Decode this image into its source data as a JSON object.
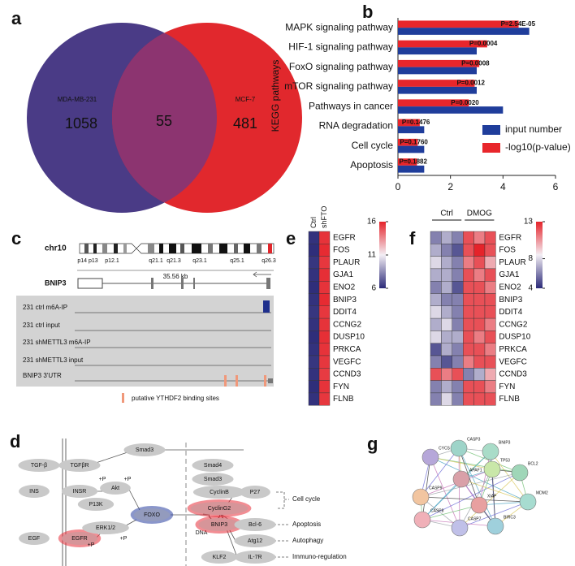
{
  "panel_labels": [
    "a",
    "b",
    "c",
    "d",
    "e",
    "f",
    "g"
  ],
  "chart_data": [
    {
      "type": "venn",
      "sets": [
        {
          "name": "MDA-MB-231",
          "count": 1058,
          "color": "#4a3b86"
        },
        {
          "name": "MCF-7",
          "count": 481,
          "color": "#e1282d"
        }
      ],
      "overlap": 55,
      "overlap_color": "#8c3470"
    },
    {
      "type": "hbar",
      "y_label": "KEGG pathways",
      "categories": [
        "MAPK signaling pathway",
        "HIF-1 signaling pathway",
        "FoxO signaling pathway",
        "mTOR signaling pathway",
        "Pathways in cancer",
        "RNA degradation",
        "Cell cycle",
        "Apoptosis"
      ],
      "series": [
        {
          "name": "input number",
          "color": "#1f3d9b",
          "values": [
            5,
            3,
            3,
            3,
            4,
            1,
            1,
            1
          ]
        },
        {
          "name": "-log10(p-value)",
          "color": "#e8262b",
          "values": [
            4.595,
            3.398,
            3.097,
            2.921,
            2.699,
            0.831,
            0.754,
            0.725
          ]
        }
      ],
      "annotations": [
        "P=2.54E-05",
        "P=0.0004",
        "P=0.0008",
        "P=0.0012",
        "P=0.0020",
        "P=0.1476",
        "P=0.1760",
        "P=0.1882"
      ],
      "xlim": [
        0,
        6
      ],
      "xticks": [
        0,
        2,
        4,
        6
      ],
      "legend": "lower right"
    },
    {
      "type": "heatmap",
      "x_categories": [
        "Ctrl",
        "shFTO"
      ],
      "y_categories": [
        "EGFR",
        "FOS",
        "PLAUR",
        "GJA1",
        "ENO2",
        "BNIP3",
        "DDIT4",
        "CCNG2",
        "DUSP10",
        "PRKCA",
        "VEGFC",
        "CCND3",
        "FYN",
        "FLNB"
      ],
      "values": [
        [
          6.2,
          15.6
        ],
        [
          6.1,
          15.8
        ],
        [
          6.3,
          15.5
        ],
        [
          6.2,
          15.7
        ],
        [
          6.1,
          15.6
        ],
        [
          6.2,
          15.8
        ],
        [
          6.3,
          15.5
        ],
        [
          6.2,
          15.6
        ],
        [
          6.1,
          15.7
        ],
        [
          6.2,
          15.6
        ],
        [
          6.3,
          15.5
        ],
        [
          6.2,
          15.4
        ],
        [
          6.1,
          15.6
        ],
        [
          6.2,
          15.5
        ]
      ],
      "clim": [
        6,
        16
      ],
      "cticks": [
        6,
        11,
        16
      ],
      "colors": [
        "#2b2a78",
        "#f3eef4",
        "#e5232a"
      ]
    },
    {
      "type": "heatmap",
      "groups": [
        {
          "name": "Ctrl",
          "size": 3
        },
        {
          "name": "DMOG",
          "size": 3
        }
      ],
      "y_categories": [
        "EGFR",
        "FOS",
        "PLAUR",
        "GJA1",
        "ENO2",
        "BNIP3",
        "DDIT4",
        "CCNG2",
        "DUSP10",
        "PRKCA",
        "VEGFC",
        "CCND3",
        "FYN",
        "FLNB"
      ],
      "values": [
        [
          6,
          7,
          6,
          12,
          11,
          12
        ],
        [
          7,
          6,
          5,
          12,
          13,
          12
        ],
        [
          8,
          7,
          6,
          11,
          12,
          10
        ],
        [
          7,
          7,
          6,
          12,
          11,
          12
        ],
        [
          6,
          7,
          5,
          12,
          12,
          11
        ],
        [
          7,
          6,
          6,
          12,
          12,
          12
        ],
        [
          8,
          7,
          6,
          12,
          12,
          12
        ],
        [
          7,
          8,
          6,
          12,
          12,
          11
        ],
        [
          8,
          7,
          7,
          12,
          11,
          12
        ],
        [
          5,
          7,
          6,
          12,
          12,
          11
        ],
        [
          6,
          5,
          6,
          11,
          12,
          12
        ],
        [
          12,
          11,
          12,
          6,
          7,
          10
        ],
        [
          6,
          7,
          6,
          12,
          12,
          11
        ],
        [
          6,
          8,
          6,
          12,
          12,
          12
        ]
      ],
      "clim": [
        4,
        13
      ],
      "cticks": [
        4,
        8,
        13
      ],
      "colors": [
        "#2b2a78",
        "#f3eef4",
        "#e5232a"
      ]
    }
  ],
  "genome_track": {
    "chromosome": "chr10",
    "bands": [
      "p14 p13",
      "p12.1",
      "q21.1",
      "q21.3",
      "q23.1",
      "q25.1",
      "q26.3"
    ],
    "scale": "35.56 kb",
    "gene": "BNIP3",
    "tracks": [
      "231 ctrl m6A-IP",
      "231 ctrl input",
      "231 shMETTL3 m6A-IP",
      "231 shMETTL3 input",
      "BNIP3 3'UTR"
    ],
    "legend": "putative YTHDF2 binding sites"
  },
  "pathway": {
    "nodes": [
      {
        "label": "TGF-β"
      },
      {
        "label": "TGFβR"
      },
      {
        "label": "Smad3"
      },
      {
        "label": "INS"
      },
      {
        "label": "INSR"
      },
      {
        "label": "P13K"
      },
      {
        "label": "Akt"
      },
      {
        "label": "+P"
      },
      {
        "label": "+P"
      },
      {
        "label": "EGF"
      },
      {
        "label": "EGFR",
        "color": "#e8303a"
      },
      {
        "label": "ERK1/2"
      },
      {
        "label": "+P"
      },
      {
        "label": "+P"
      },
      {
        "label": "FOXO",
        "color": "#2a3fa0"
      },
      {
        "label": "Smad4"
      },
      {
        "label": "Smad3"
      },
      {
        "label": "DNA"
      },
      {
        "label": "CyclinB"
      },
      {
        "label": "P27"
      },
      {
        "label": "CyclinG2",
        "color": "#e8303a"
      },
      {
        "label": "BNIP3",
        "color": "#e8303a"
      },
      {
        "label": "Bcl-6"
      },
      {
        "label": "Atg12"
      },
      {
        "label": "KLF2"
      },
      {
        "label": "IL-7R"
      }
    ],
    "outcomes": [
      "Cell cycle",
      "Apoptosis",
      "Autophagy",
      "Immuno-regulation"
    ]
  },
  "network": {
    "nodes": [
      "CYCS",
      "CASP3",
      "BNIP3",
      "BCL2",
      "TP53",
      "APAF1",
      "CASP9",
      "MDM2",
      "BIRC3",
      "CASP7",
      "CASP8",
      "XIAP"
    ]
  }
}
